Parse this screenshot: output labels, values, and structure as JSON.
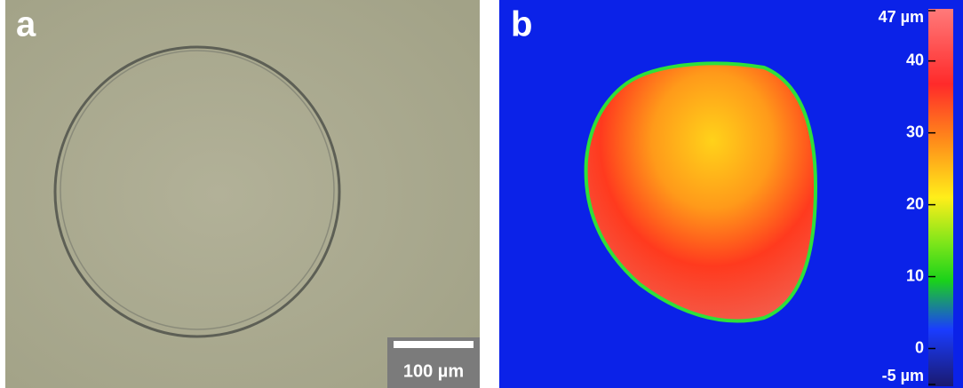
{
  "panels": [
    {
      "label": "a",
      "scale_bar": "100 µm"
    },
    {
      "label": "b",
      "colorbar": {
        "range": [
          -5,
          47
        ],
        "ticks": [
          {
            "value": 47,
            "label": "47 µm"
          },
          40,
          30,
          20,
          10,
          0,
          {
            "value": -5,
            "label": "-5 µm"
          }
        ]
      }
    }
  ]
}
